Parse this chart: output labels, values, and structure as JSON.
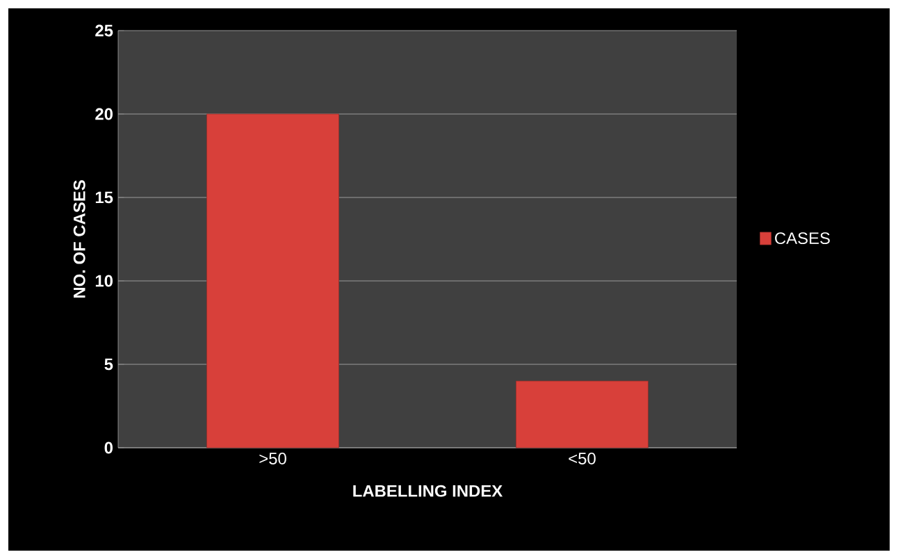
{
  "chart_data": {
    "type": "bar",
    "xlabel": "LABELLING INDEX",
    "ylabel": "NO. OF CASES",
    "categories": [
      ">50",
      "<50"
    ],
    "series": [
      {
        "name": "CASES",
        "color": "#d8403a",
        "values": [
          20,
          4
        ]
      }
    ],
    "ylim": [
      0,
      25
    ],
    "yticks": [
      0,
      5,
      10,
      15,
      20,
      25
    ],
    "grid": "y",
    "legend": "right"
  }
}
